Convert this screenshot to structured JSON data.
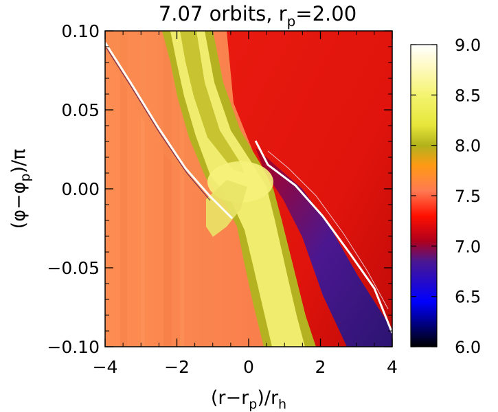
{
  "chart_data": {
    "type": "heatmap",
    "title": "7.07 orbits, r",
    "title_sub": "p",
    "title_tail": "=2.00",
    "xlabel": {
      "pre": "(r−r",
      "sub1": "p",
      "mid": ")/r",
      "sub2": "h"
    },
    "ylabel": {
      "pre": "(φ−φ",
      "sub": "p",
      "post": ")/π"
    },
    "xlim": [
      -4,
      4
    ],
    "ylim": [
      -0.1,
      0.1
    ],
    "x_ticks": [
      -4,
      -2,
      0,
      2,
      4
    ],
    "x_tick_labels": [
      "−4",
      "−2",
      "0",
      "2",
      "4"
    ],
    "y_ticks": [
      0.1,
      0.05,
      0.0,
      -0.05,
      -0.1
    ],
    "y_tick_labels": [
      "0.10",
      "0.05",
      "0.00",
      "−0.05",
      "−0.10"
    ],
    "colorbar": {
      "range": [
        6.0,
        9.0
      ],
      "ticks": [
        9.0,
        8.5,
        8.0,
        7.5,
        7.0,
        6.5,
        6.0
      ],
      "tick_labels": [
        "9.0",
        "8.5",
        "8.0",
        "7.5",
        "7.0",
        "6.5",
        "6.0"
      ],
      "colormap_stops": [
        {
          "value": 6.0,
          "color": "#000000"
        },
        {
          "value": 6.45,
          "color": "#0000ff"
        },
        {
          "value": 6.85,
          "color": "#4b1790"
        },
        {
          "value": 7.05,
          "color": "#b0001c"
        },
        {
          "value": 7.3,
          "color": "#ff1000"
        },
        {
          "value": 7.55,
          "color": "#ff7a52"
        },
        {
          "value": 7.8,
          "color": "#ff9a14"
        },
        {
          "value": 8.0,
          "color": "#b2b21c"
        },
        {
          "value": 8.2,
          "color": "#e6e63a"
        },
        {
          "value": 8.5,
          "color": "#f4f470"
        },
        {
          "value": 8.8,
          "color": "#fffac8"
        },
        {
          "value": 9.0,
          "color": "#ffffff"
        }
      ]
    },
    "colors": {
      "inner_region": "#fd8e55",
      "outer_region": "#e8100a",
      "spiral_band": "#f3ee78",
      "spiral_edge": "#b4b221",
      "post_shock": "#3a168a"
    }
  }
}
